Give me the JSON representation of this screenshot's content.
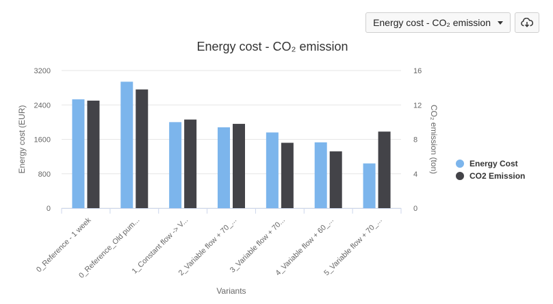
{
  "toolbar": {
    "selector_label": "Energy cost - CO₂ emission",
    "download_icon": "cloud-download-icon"
  },
  "colors": {
    "energy": "#7cb5ec",
    "co2": "#434348",
    "grid": "#e6e6e6",
    "axis_text": "#666666"
  },
  "chart_data": {
    "type": "bar",
    "title": "Energy cost - CO₂ emission",
    "xlabel": "Variants",
    "ylabel_left": "Energy cost (EUR)",
    "ylabel_right": "CO₂ emission (ton)",
    "ylim_left": [
      0,
      3200
    ],
    "ylim_right": [
      0,
      16
    ],
    "yticks_left": [
      "0",
      "800",
      "1600",
      "2400",
      "3200"
    ],
    "yticks_right": [
      "0",
      "4",
      "8",
      "12",
      "16"
    ],
    "grid": true,
    "legend_position": "right",
    "categories": [
      "0_Reference - 1 week",
      "0_Reference_Old pum...",
      "1_Constant flow -> V...",
      "2_Variable flow + 70_...",
      "3_Variable flow + 70...",
      "4_Variable flow + 60_...",
      "5_Variable flow + 70_..."
    ],
    "series": [
      {
        "name": "Energy Cost",
        "axis": "left",
        "values": [
          2530,
          2940,
          2000,
          1880,
          1760,
          1530,
          1040
        ]
      },
      {
        "name": "CO2 Emission",
        "axis": "right",
        "values": [
          12.5,
          13.8,
          10.3,
          9.8,
          7.6,
          6.6,
          8.9
        ]
      }
    ]
  }
}
